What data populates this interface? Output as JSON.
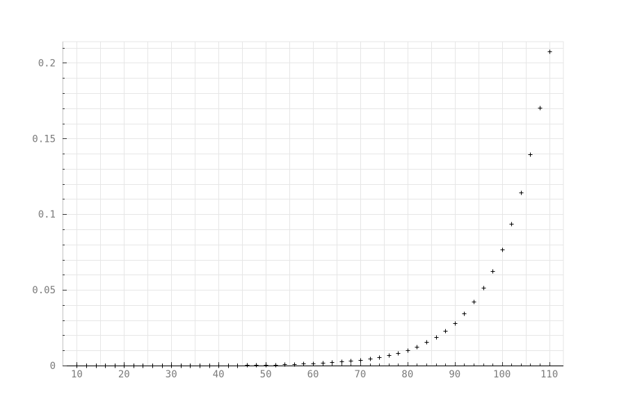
{
  "chart_data": {
    "type": "scatter",
    "title": "",
    "xlabel": "",
    "ylabel": "",
    "xlim": [
      7,
      113
    ],
    "ylim": [
      0,
      0.214
    ],
    "x_ticks": [
      10,
      20,
      30,
      40,
      50,
      60,
      70,
      80,
      90,
      100,
      110
    ],
    "x_tick_labels": [
      "10",
      "20",
      "30",
      "40",
      "50",
      "60",
      "70",
      "80",
      "90",
      "100",
      "110"
    ],
    "y_ticks": [
      0,
      0.05,
      0.1,
      0.15,
      0.2
    ],
    "y_tick_labels": [
      "0",
      "0.05",
      "0.1",
      "0.15",
      "0.2"
    ],
    "grid": true,
    "marker": "plus",
    "colors": {
      "marker": "#000000",
      "grid": "#e6e6e6",
      "tick_label": "#7a7a7a",
      "axis": "#000000"
    },
    "series": [
      {
        "x": [
          10,
          12,
          14,
          16,
          18,
          20,
          22,
          24,
          26,
          28,
          30,
          32,
          34,
          36,
          38,
          40,
          42,
          44,
          46,
          48,
          50,
          52,
          54,
          56,
          58,
          60,
          62,
          64,
          66,
          68,
          70,
          72,
          74,
          76,
          78,
          80,
          82,
          84,
          86,
          88,
          90,
          92,
          94,
          96,
          98,
          100,
          102,
          104,
          106,
          108,
          110
        ],
        "y": [
          0,
          0,
          0,
          0,
          0,
          0,
          0,
          0,
          0,
          0,
          0,
          0,
          0,
          0,
          0,
          0.0001,
          0.0002,
          0.0002,
          0.0003,
          0.0004,
          0.0005,
          0.0006,
          0.0008,
          0.001,
          0.0012,
          0.0015,
          0.0018,
          0.0022,
          0.0027,
          0.0033,
          0.0039,
          0.0047,
          0.0057,
          0.0069,
          0.0084,
          0.0102,
          0.0126,
          0.0154,
          0.0188,
          0.023,
          0.028,
          0.0345,
          0.0422,
          0.0515,
          0.0625,
          0.0765,
          0.0935,
          0.1145,
          0.1395,
          0.1705,
          0.2075
        ]
      }
    ]
  }
}
